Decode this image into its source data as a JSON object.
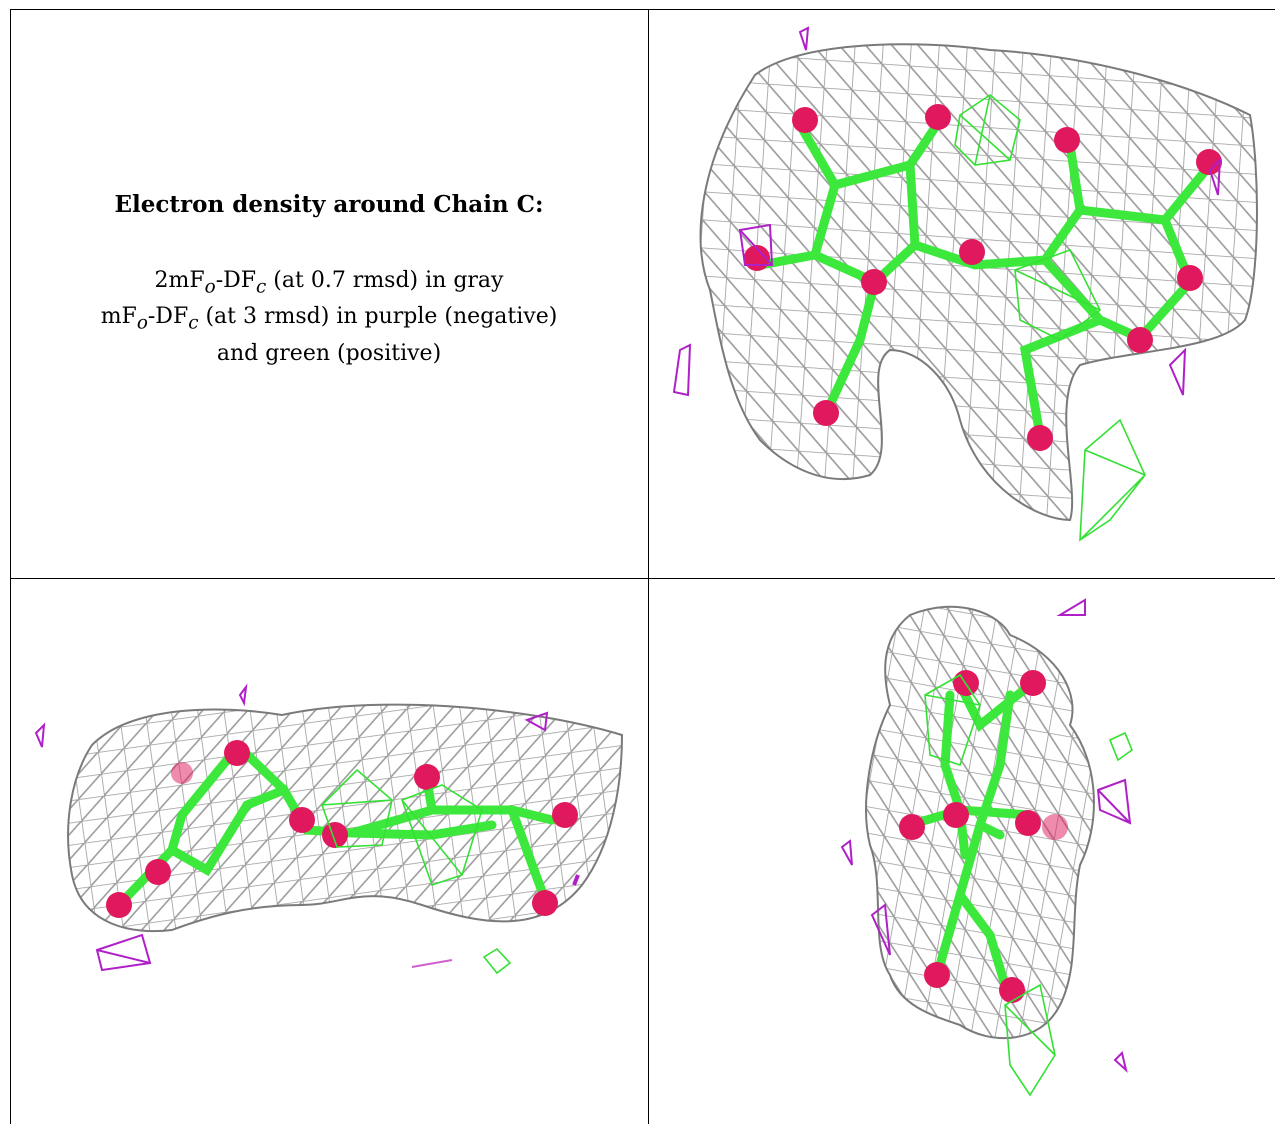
{
  "caption": {
    "title": "Electron density around Chain C:",
    "line1_pre": "2mF",
    "line1_sub1": "o",
    "line1_mid": "-DF",
    "line1_sub2": "c",
    "line1_post": " (at 0.7 rmsd) in gray",
    "line2_pre": "mF",
    "line2_sub1": "o",
    "line2_mid": "-DF",
    "line2_sub2": "c",
    "line2_post": " (at 3 rmsd) in purple (negative)",
    "line3": "and green (positive)"
  },
  "colors": {
    "mesh_gray": "#8a8a8a",
    "bond_green": "#3ce83c",
    "atom_red": "#e0195e",
    "negative_purple": "#b020c8",
    "positive_green": "#34e034",
    "grid_line": "#000000"
  },
  "panels": [
    {
      "id": "top-right",
      "view": "front"
    },
    {
      "id": "bottom-left",
      "view": "side"
    },
    {
      "id": "bottom-right",
      "view": "end"
    }
  ]
}
